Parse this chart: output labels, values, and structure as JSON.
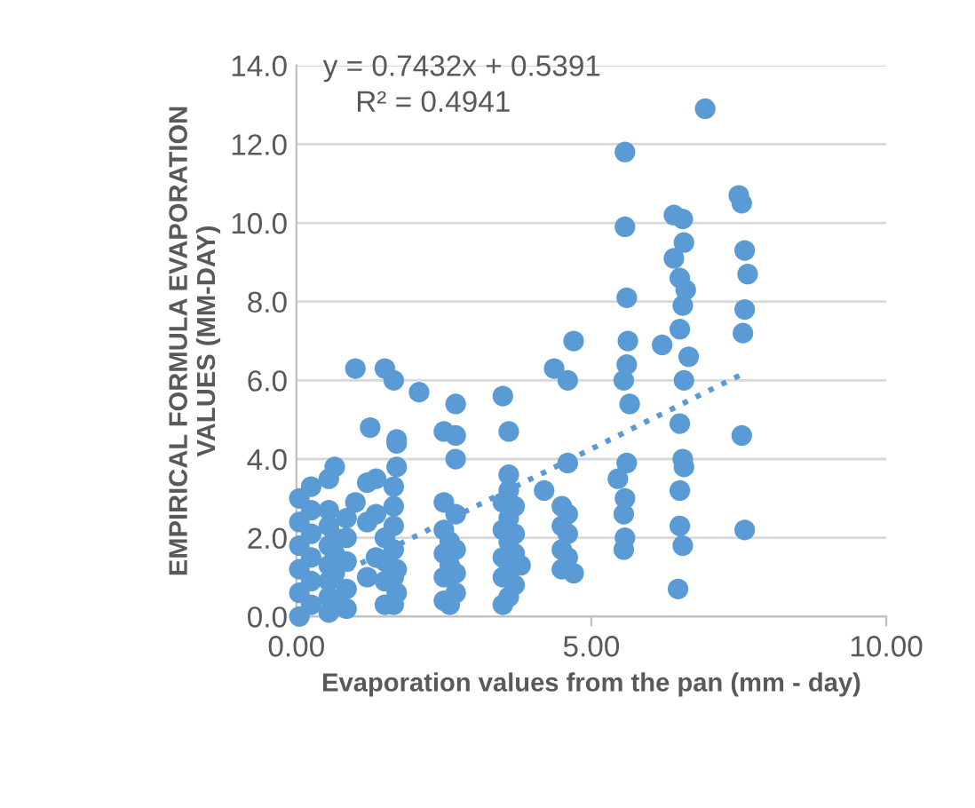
{
  "chart_data": {
    "type": "scatter",
    "xlabel": "Evaporation values from the pan (mm - day)",
    "ylabel": "EMPIRICAL FORMULA EVAPORATION\nVALUES (MM-DAY)",
    "annotations": [
      "y = 0.7432x + 0.5391",
      "R² = 0.4941"
    ],
    "xlim": [
      0,
      10
    ],
    "ylim": [
      0,
      14
    ],
    "xticks": [
      {
        "value": 0,
        "label": "0.00"
      },
      {
        "value": 5,
        "label": "5.00"
      },
      {
        "value": 10,
        "label": "10.00"
      }
    ],
    "yticks": [
      {
        "value": 0,
        "label": "0.0"
      },
      {
        "value": 2,
        "label": "2.0"
      },
      {
        "value": 4,
        "label": "4.0"
      },
      {
        "value": 6,
        "label": "6.0"
      },
      {
        "value": 8,
        "label": "8.0"
      },
      {
        "value": 10,
        "label": "10.0"
      },
      {
        "value": 12,
        "label": "12.0"
      },
      {
        "value": 14,
        "label": "14.0"
      }
    ],
    "grid": "y",
    "marker": "circle",
    "legend": false,
    "series": [
      {
        "color": "#5b9bd5",
        "x": [
          0.05,
          0.05,
          0.05,
          0.05,
          0.05,
          0.05,
          0.25,
          0.25,
          0.25,
          0.25,
          0.25,
          0.25,
          0.55,
          0.55,
          0.55,
          0.55,
          0.55,
          0.55,
          0.55,
          0.55,
          0.65,
          0.65,
          0.65,
          0.65,
          0.65,
          0.85,
          0.85,
          0.85,
          0.85,
          0.85,
          1.0,
          1.0,
          1.2,
          1.2,
          1.2,
          1.25,
          1.35,
          1.35,
          1.35,
          1.5,
          1.5,
          1.5,
          1.5,
          1.5,
          1.65,
          1.65,
          1.65,
          1.65,
          1.65,
          1.65,
          1.65,
          1.7,
          1.7,
          1.7,
          1.7,
          1.7,
          2.08,
          2.5,
          2.5,
          2.5,
          2.5,
          2.5,
          2.5,
          2.6,
          2.6,
          2.6,
          2.7,
          2.7,
          2.7,
          2.7,
          2.7,
          2.7,
          2.7,
          3.5,
          3.5,
          3.5,
          3.5,
          3.5,
          3.5,
          3.6,
          3.6,
          3.6,
          3.6,
          3.6,
          3.6,
          3.6,
          3.7,
          3.7,
          3.7,
          3.7,
          3.8,
          4.2,
          4.37,
          4.5,
          4.5,
          4.5,
          4.5,
          4.6,
          4.6,
          4.6,
          4.6,
          4.6,
          4.7,
          4.7,
          5.57,
          5.57,
          5.6,
          5.62,
          5.6,
          5.55,
          5.65,
          5.6,
          5.45,
          5.57,
          5.55,
          5.57,
          5.55,
          6.93,
          6.4,
          6.55,
          6.57,
          6.4,
          6.5,
          6.6,
          6.55,
          6.5,
          6.2,
          6.65,
          6.57,
          6.5,
          6.55,
          6.57,
          6.5,
          6.5,
          6.55,
          6.47,
          7.5,
          7.55,
          7.6,
          7.65,
          7.6,
          7.57,
          7.55,
          7.6
        ],
        "values": [
          0.0,
          0.6,
          1.2,
          1.8,
          2.4,
          3.0,
          0.3,
          0.9,
          1.5,
          2.1,
          2.7,
          3.3,
          0.1,
          0.5,
          0.9,
          1.3,
          1.8,
          2.3,
          2.7,
          3.5,
          0.3,
          1.1,
          1.6,
          2.0,
          3.8,
          0.2,
          0.7,
          1.4,
          2.0,
          2.5,
          2.9,
          6.3,
          1.0,
          2.4,
          3.4,
          4.8,
          1.5,
          3.5,
          2.6,
          6.3,
          0.3,
          0.9,
          1.4,
          2.0,
          6.0,
          0.3,
          1.0,
          1.7,
          2.3,
          2.8,
          3.3,
          4.5,
          4.4,
          3.8,
          0.6,
          1.2,
          5.7,
          4.7,
          0.4,
          1.0,
          1.6,
          2.2,
          2.9,
          0.3,
          1.3,
          1.9,
          5.4,
          4.6,
          4.0,
          1.1,
          1.7,
          2.6,
          0.6,
          5.6,
          0.3,
          1.0,
          1.5,
          2.2,
          2.9,
          4.7,
          3.6,
          0.5,
          1.2,
          1.9,
          2.5,
          3.2,
          0.8,
          1.6,
          2.1,
          2.8,
          1.3,
          3.2,
          6.3,
          1.2,
          1.7,
          2.3,
          2.8,
          6.0,
          3.9,
          1.5,
          2.1,
          2.6,
          7.0,
          1.1,
          11.8,
          9.9,
          8.1,
          7.0,
          6.4,
          6.0,
          5.4,
          3.9,
          3.5,
          3.0,
          2.6,
          2.0,
          1.7,
          12.9,
          10.2,
          10.1,
          9.5,
          9.1,
          8.6,
          8.3,
          7.9,
          7.3,
          6.9,
          6.6,
          6.0,
          4.9,
          4.0,
          3.8,
          3.2,
          2.3,
          1.8,
          0.7,
          10.7,
          10.5,
          9.3,
          8.7,
          7.8,
          7.2,
          4.6,
          2.2
        ]
      },
      {
        "type": "line",
        "color": "#5b9bd5",
        "line_style": "dotted",
        "marker": "none",
        "x": [
          0,
          7.6
        ],
        "values": [
          0.54,
          6.19
        ]
      }
    ]
  }
}
